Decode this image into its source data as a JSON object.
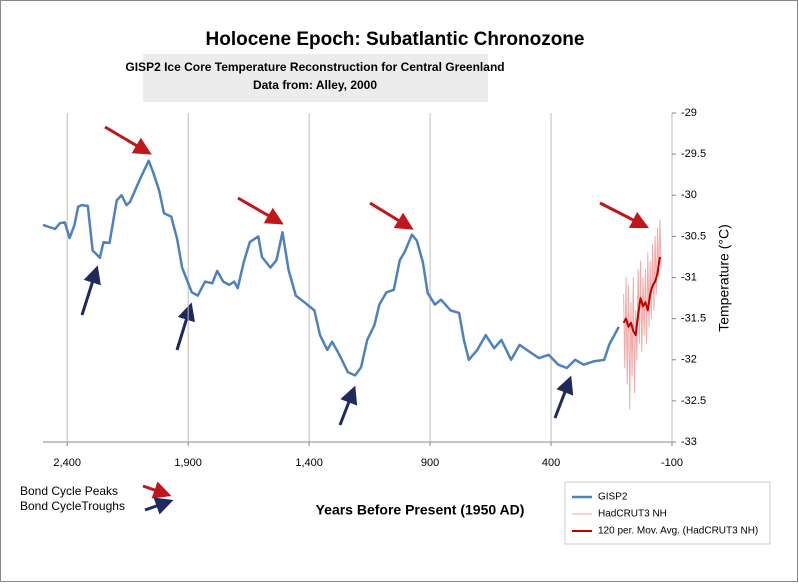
{
  "chart_data": {
    "type": "line",
    "title": "Holocene Epoch: Subatlantic Chronozone",
    "subtitle": [
      "GISP2 Ice Core Temperature Reconstruction for Central Greenland",
      "Data from: Alley, 2000"
    ],
    "x_label": "Years Before Present (1950 AD)",
    "y_label": "Temperature (°C)",
    "annotations": [
      "Bond Cycle Peaks",
      "Bond CycleTroughs"
    ],
    "xlim": [
      2500,
      -100
    ],
    "xticks": [
      {
        "value": 2400,
        "label": "2,400"
      },
      {
        "value": 1900,
        "label": "1,900"
      },
      {
        "value": 1400,
        "label": "1,400"
      },
      900,
      400,
      -100
    ],
    "ylim": [
      -33,
      -29
    ],
    "yticks": [
      -29,
      -29.5,
      -30,
      -30.5,
      -31,
      -31.5,
      -32,
      -32.5,
      -33
    ],
    "y_axis_side": "right",
    "xgrid": true,
    "legend": "bottom-right",
    "series": [
      {
        "name": "GISP2",
        "color": "#4f81bd",
        "x": [
          2500,
          2450,
          2430,
          2410,
          2390,
          2370,
          2355,
          2340,
          2315,
          2295,
          2265,
          2250,
          2225,
          2195,
          2175,
          2155,
          2140,
          2100,
          2063,
          2045,
          2020,
          2000,
          1970,
          1945,
          1925,
          1885,
          1860,
          1830,
          1800,
          1780,
          1755,
          1730,
          1710,
          1695,
          1670,
          1645,
          1610,
          1595,
          1560,
          1535,
          1510,
          1485,
          1455,
          1420,
          1378,
          1355,
          1325,
          1305,
          1275,
          1240,
          1210,
          1185,
          1160,
          1130,
          1110,
          1080,
          1050,
          1025,
          1005,
          975,
          955,
          930,
          910,
          880,
          855,
          815,
          780,
          760,
          740,
          705,
          670,
          635,
          605,
          565,
          530,
          500,
          450,
          410,
          370,
          335,
          300,
          265,
          225,
          180,
          160,
          120
        ],
        "values": [
          -30.36,
          -30.41,
          -30.34,
          -30.33,
          -30.52,
          -30.36,
          -30.14,
          -30.12,
          -30.13,
          -30.67,
          -30.76,
          -30.57,
          -30.58,
          -30.06,
          -30.0,
          -30.12,
          -30.08,
          -29.81,
          -29.58,
          -29.72,
          -29.94,
          -30.22,
          -30.26,
          -30.54,
          -30.88,
          -31.18,
          -31.22,
          -31.05,
          -31.07,
          -30.92,
          -31.05,
          -31.09,
          -31.05,
          -31.13,
          -30.81,
          -30.57,
          -30.5,
          -30.75,
          -30.88,
          -30.79,
          -30.45,
          -30.91,
          -31.22,
          -31.3,
          -31.4,
          -31.7,
          -31.88,
          -31.78,
          -31.94,
          -32.15,
          -32.19,
          -32.09,
          -31.76,
          -31.58,
          -31.33,
          -31.18,
          -31.15,
          -30.79,
          -30.69,
          -30.48,
          -30.55,
          -30.81,
          -31.19,
          -31.33,
          -31.27,
          -31.4,
          -31.43,
          -31.76,
          -32.0,
          -31.88,
          -31.7,
          -31.86,
          -31.76,
          -32.0,
          -31.82,
          -31.88,
          -31.98,
          -31.94,
          -32.06,
          -32.1,
          -32.0,
          -32.06,
          -32.02,
          -32.0,
          -31.82,
          -31.6
        ]
      },
      {
        "name": "HadCRUT3  NH",
        "color": "#f2a9a9",
        "x": [
          100,
          95,
          90,
          85,
          80,
          75,
          70,
          65,
          60,
          55,
          50,
          45,
          40,
          35,
          30,
          25,
          20,
          15,
          10,
          5,
          0,
          -5,
          -10,
          -15,
          -20,
          -25,
          -30,
          -35,
          -40,
          -45,
          -50,
          -55
        ],
        "values": [
          -31.2,
          -32.1,
          -31.0,
          -32.3,
          -31.1,
          -32.6,
          -31.3,
          -32.2,
          -31.0,
          -32.4,
          -31.4,
          -32.0,
          -30.9,
          -31.8,
          -30.8,
          -31.9,
          -31.0,
          -31.7,
          -30.9,
          -31.8,
          -30.7,
          -31.6,
          -30.8,
          -31.5,
          -30.6,
          -31.4,
          -30.5,
          -31.2,
          -30.4,
          -31.0,
          -30.3,
          -30.9
        ]
      },
      {
        "name": "120 per. Mov. Avg. (HadCRUT3  NH)",
        "color": "#c00000",
        "x": [
          100,
          90,
          80,
          70,
          60,
          50,
          40,
          30,
          20,
          10,
          0,
          -10,
          -20,
          -30,
          -40,
          -50
        ],
        "values": [
          -31.55,
          -31.5,
          -31.6,
          -31.55,
          -31.65,
          -31.7,
          -31.45,
          -31.25,
          -31.35,
          -31.3,
          -31.4,
          -31.2,
          -31.1,
          -31.05,
          -30.95,
          -30.75
        ]
      }
    ]
  }
}
